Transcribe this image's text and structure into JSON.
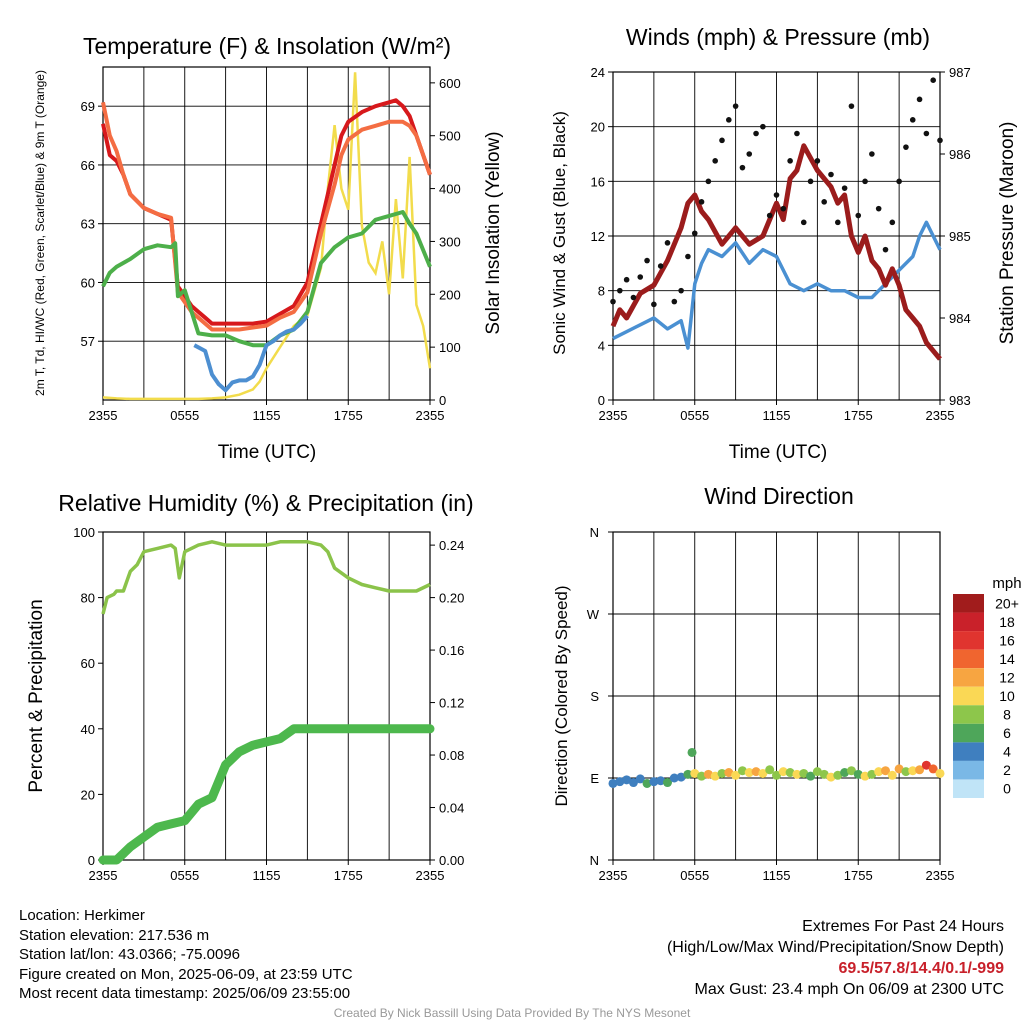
{
  "chart_data": [
    {
      "type": "line",
      "title": "Temperature (F) & Insolation (W/m²)",
      "xlabel": "Time (UTC)",
      "ylabel": "2m T, Td, HI/WC (Red, Green, Scarlet/Blue) & 9m T (Orange)",
      "y2label": "Solar Insolation (Yellow)",
      "x_tick_labels": [
        "2355",
        "0555",
        "1155",
        "1755",
        "2355"
      ],
      "ylim": [
        54,
        71
      ],
      "y_ticks": [
        "57",
        "60",
        "63",
        "66",
        "69"
      ],
      "y2lim": [
        0,
        630
      ],
      "y2_ticks": [
        "0",
        "100",
        "200",
        "300",
        "400",
        "500",
        "600"
      ],
      "series": [
        {
          "color": "#d7191c",
          "x": [
            0,
            0.5,
            1,
            1.5,
            2,
            3,
            4,
            5,
            5.5,
            6,
            6.5,
            7,
            7.5,
            8,
            9,
            10,
            11,
            12,
            13,
            14,
            15,
            16,
            17,
            17.5,
            18,
            19,
            20,
            21,
            21.5,
            22,
            22.5,
            23,
            23.5,
            24
          ],
          "values": [
            68.1,
            66.5,
            66.2,
            65.5,
            64.5,
            63.8,
            63.5,
            63.2,
            59.8,
            59.3,
            58.8,
            58.5,
            58.2,
            57.9,
            57.9,
            57.9,
            57.9,
            58.0,
            58.4,
            58.8,
            60.0,
            63.0,
            66.0,
            67.5,
            68.2,
            68.7,
            69.0,
            69.2,
            69.3,
            69.0,
            68.5,
            67.5,
            66.5,
            65.5
          ]
        },
        {
          "color": "#f46d43",
          "x": [
            0,
            0.5,
            1,
            1.5,
            2,
            3,
            4,
            5,
            5.5,
            6,
            6.5,
            7,
            7.5,
            8,
            9,
            10,
            11,
            12,
            13,
            14,
            15,
            16,
            17,
            17.5,
            18,
            19,
            20,
            21,
            21.5,
            22,
            22.5,
            23,
            23.5,
            24
          ],
          "values": [
            69.2,
            67.5,
            66.7,
            65.5,
            64.5,
            63.8,
            63.5,
            63.3,
            59.5,
            59.0,
            58.5,
            58.2,
            57.9,
            57.6,
            57.6,
            57.6,
            57.7,
            57.8,
            58.2,
            58.5,
            59.5,
            62.5,
            65.0,
            66.5,
            67.3,
            67.8,
            68.0,
            68.2,
            68.2,
            68.2,
            68.0,
            67.5,
            66.5,
            65.5
          ]
        },
        {
          "color": "#4daf4a",
          "x": [
            0,
            0.5,
            1,
            2,
            3,
            4,
            5,
            5.3,
            5.5,
            6,
            7,
            8,
            9,
            10,
            11,
            12,
            13,
            14,
            15,
            16,
            17,
            18,
            19,
            20,
            21,
            22,
            22.5,
            23,
            24
          ],
          "values": [
            59.8,
            60.5,
            60.8,
            61.2,
            61.7,
            61.9,
            61.8,
            62.0,
            59.3,
            59.6,
            57.4,
            57.3,
            57.3,
            57.0,
            56.8,
            56.8,
            57.3,
            57.6,
            58.5,
            61.0,
            61.8,
            62.3,
            62.5,
            63.2,
            63.4,
            63.6,
            63.0,
            62.5,
            60.8
          ]
        },
        {
          "color": "#4d8fd1",
          "x": [
            6.7,
            7.5,
            8,
            8.5,
            9,
            9.5,
            10,
            10.5,
            11,
            11.5,
            12,
            12.5,
            13,
            13.5,
            14,
            14.5,
            15
          ],
          "values": [
            56.8,
            56.5,
            55.3,
            54.8,
            54.5,
            54.9,
            55.0,
            55.0,
            55.2,
            55.8,
            56.8,
            57.0,
            57.3,
            57.5,
            57.6,
            57.9,
            58.3
          ]
        }
      ],
      "y2_series": {
        "color": "#f2dc4c",
        "x": [
          0,
          1,
          2,
          3,
          4,
          5,
          6,
          7,
          8,
          9,
          10,
          11,
          11.5,
          12,
          13,
          14,
          15,
          16,
          16.5,
          17,
          17.5,
          18,
          18.5,
          19,
          19.5,
          20,
          20.5,
          21,
          21.5,
          22,
          22.5,
          23,
          23.5,
          24
        ],
        "values": [
          5,
          3,
          2,
          2,
          2,
          2,
          2,
          2,
          3,
          5,
          10,
          20,
          35,
          60,
          100,
          140,
          160,
          250,
          400,
          520,
          400,
          360,
          620,
          330,
          260,
          240,
          300,
          200,
          380,
          230,
          460,
          180,
          140,
          60
        ]
      }
    },
    {
      "type": "scatter",
      "title": "Winds (mph) & Pressure (mb)",
      "xlabel": "Time (UTC)",
      "ylabel": "Sonic Wind & Gust (Blue, Black)",
      "y2label": "Station Pressure (Maroon)",
      "x_tick_labels": [
        "2355",
        "0555",
        "1155",
        "1755",
        "2355"
      ],
      "ylim": [
        0,
        24
      ],
      "y_ticks": [
        "0",
        "4",
        "8",
        "12",
        "16",
        "20",
        "24"
      ],
      "y2lim": [
        983,
        987
      ],
      "y2_ticks": [
        "983",
        "984",
        "985",
        "986",
        "987"
      ],
      "series": [
        {
          "color": "#4a90d2",
          "x": [
            0,
            1,
            2,
            3,
            4,
            5,
            5.5,
            6,
            6.5,
            7,
            8,
            9,
            10,
            11,
            12,
            13,
            14,
            15,
            16,
            17,
            18,
            19,
            20,
            21,
            22,
            22.5,
            23,
            23.5,
            24
          ],
          "values": [
            4.5,
            5.0,
            5.5,
            6.0,
            5.2,
            5.8,
            3.8,
            8.5,
            10.0,
            11.0,
            10.5,
            11.5,
            10.0,
            11.0,
            10.5,
            8.5,
            8.0,
            8.5,
            8.0,
            8.0,
            7.5,
            7.5,
            8.5,
            9.5,
            10.5,
            12.0,
            13.0,
            12.0,
            11.0
          ]
        },
        {
          "color": "#111111",
          "x": [
            0,
            0.5,
            1,
            1.5,
            2,
            2.5,
            3,
            3.5,
            4,
            4.5,
            5,
            5.5,
            6,
            6.5,
            7,
            7.5,
            8,
            8.5,
            9,
            9.5,
            10,
            10.5,
            11,
            11.5,
            12,
            12.5,
            13,
            13.5,
            14,
            14.5,
            15,
            15.5,
            16,
            16.5,
            17,
            17.5,
            18,
            18.5,
            19,
            19.5,
            20,
            20.5,
            21,
            21.5,
            22,
            22.5,
            23,
            23.5,
            24
          ],
          "values": [
            7.2,
            8.0,
            8.8,
            7.5,
            9.0,
            10.2,
            7.0,
            9.8,
            11.5,
            7.2,
            8.0,
            10.5,
            12.2,
            14.5,
            16.0,
            17.5,
            19.0,
            20.5,
            21.5,
            17.0,
            18.0,
            19.5,
            20.0,
            13.5,
            15.0,
            14.0,
            17.5,
            19.5,
            13.0,
            16.0,
            17.5,
            14.5,
            16.5,
            13.0,
            15.5,
            21.5,
            13.5,
            16.0,
            18.0,
            14.0,
            11.0,
            13.0,
            16.0,
            18.5,
            20.5,
            22.0,
            19.5,
            23.4,
            19.0
          ]
        }
      ],
      "y2_series": {
        "color": "#9b1c1c",
        "x": [
          0,
          0.5,
          1,
          2,
          3,
          4,
          5,
          5.5,
          6,
          6.5,
          7,
          8,
          9,
          10,
          11,
          11.5,
          12,
          12.5,
          13,
          13.5,
          14,
          15,
          16,
          16.5,
          17,
          17.5,
          18,
          18.5,
          19,
          19.5,
          20,
          20.5,
          21,
          21.5,
          22,
          22.5,
          23,
          23.5,
          24
        ],
        "values": [
          983.9,
          984.1,
          984.0,
          984.3,
          984.4,
          984.7,
          985.1,
          985.4,
          985.5,
          985.3,
          985.2,
          984.9,
          985.1,
          984.9,
          985.0,
          985.2,
          985.4,
          985.2,
          985.7,
          985.8,
          986.1,
          985.8,
          985.6,
          985.4,
          985.5,
          985.0,
          984.8,
          985.0,
          984.7,
          984.6,
          984.4,
          984.6,
          984.4,
          984.1,
          984.0,
          983.9,
          983.7,
          983.6,
          983.5
        ]
      }
    },
    {
      "type": "line",
      "title": "Relative Humidity (%) & Precipitation (in)",
      "ylabel": "Percent & Precipitation",
      "x_tick_labels": [
        "2355",
        "0555",
        "1155",
        "1755",
        "2355"
      ],
      "ylim": [
        0,
        100
      ],
      "y_ticks": [
        "0",
        "20",
        "40",
        "60",
        "80",
        "100"
      ],
      "y2lim": [
        0,
        0.25
      ],
      "y2_ticks": [
        "0.00",
        "0.04",
        "0.08",
        "0.12",
        "0.16",
        "0.20",
        "0.24"
      ],
      "series": [
        {
          "color": "#8bc34a",
          "x": [
            0,
            0.3,
            0.8,
            1,
            1.5,
            2,
            2.5,
            3,
            4,
            5,
            5.3,
            5.6,
            6,
            7,
            8,
            9,
            10,
            11,
            12,
            13,
            14,
            15,
            16,
            16.5,
            17,
            18,
            19,
            20,
            21,
            22,
            23,
            24
          ],
          "values": [
            75,
            80,
            81,
            82,
            82,
            88,
            90,
            94,
            95,
            96,
            95,
            86,
            94,
            96,
            97,
            96,
            96,
            96,
            96,
            97,
            97,
            97,
            96,
            94,
            89,
            86,
            84,
            83,
            82,
            82,
            82,
            84
          ]
        },
        {
          "color": "#4db84d",
          "x": [
            0,
            1,
            2,
            3,
            4,
            5,
            6,
            7,
            8,
            9,
            10,
            11,
            12,
            13,
            14,
            15,
            16,
            17,
            18,
            19,
            20,
            21,
            22,
            23,
            24
          ],
          "values": [
            0,
            0,
            4,
            7,
            10,
            11,
            12,
            17,
            19,
            29,
            33,
            35,
            36,
            37,
            40,
            40,
            40,
            40,
            40,
            40,
            40,
            40,
            40,
            40,
            40
          ]
        }
      ]
    },
    {
      "type": "scatter",
      "title": "Wind Direction",
      "ylabel": "Direction (Colored By Speed)",
      "x_tick_labels": [
        "2355",
        "0555",
        "1155",
        "1755",
        "2355"
      ],
      "y_ticks": [
        "N",
        "E",
        "S",
        "W",
        "N"
      ],
      "ylim": [
        0,
        360
      ],
      "legend": {
        "title": "mph",
        "labels": [
          "20+",
          "18",
          "16",
          "14",
          "12",
          "10",
          "8",
          "6",
          "4",
          "2",
          "0"
        ],
        "colors": [
          "#a11c1c",
          "#c9212a",
          "#e0342f",
          "#f0652f",
          "#f7a541",
          "#fad855",
          "#8dc64b",
          "#4ea65a",
          "#3f7fbf",
          "#7ab8e6",
          "#c0e4f7"
        ]
      },
      "series": [
        {
          "x": [
            0,
            0.5,
            1,
            1.5,
            2,
            2.5,
            3,
            3.5,
            4,
            4.5,
            5,
            5.5,
            5.8,
            6,
            6.5,
            7,
            7.5,
            8,
            8.5,
            9,
            9.5,
            10,
            10.5,
            11,
            11.5,
            12,
            12.5,
            13,
            13.5,
            14,
            14.5,
            15,
            15.5,
            16,
            16.5,
            17,
            17.5,
            18,
            18.5,
            19,
            19.5,
            20,
            20.5,
            21,
            21.5,
            22,
            22.5,
            23,
            23.5,
            24
          ],
          "values": [
            84,
            86,
            88,
            85,
            89,
            84,
            86,
            87,
            85,
            90,
            91,
            94,
            118,
            95,
            92,
            94,
            92,
            95,
            96,
            93,
            98,
            96,
            97,
            95,
            99,
            93,
            97,
            96,
            94,
            95,
            92,
            97,
            94,
            91,
            93,
            96,
            98,
            94,
            92,
            94,
            97,
            98,
            93,
            100,
            97,
            98,
            99,
            104,
            100,
            95
          ],
          "speeds": [
            4,
            4,
            5,
            5,
            4,
            6,
            4,
            5,
            6,
            4,
            4,
            6,
            7,
            10,
            8,
            12,
            11,
            9,
            12,
            10,
            9,
            11,
            12,
            10,
            8,
            9,
            11,
            8,
            10,
            9,
            7,
            8,
            9,
            10,
            8,
            6,
            8,
            7,
            10,
            9,
            11,
            12,
            10,
            12,
            9,
            11,
            13,
            16,
            14,
            10
          ]
        }
      ]
    }
  ],
  "info": {
    "location": "Location: Herkimer",
    "elevation": "Station elevation: 217.536 m",
    "latlon": "Station lat/lon: 43.0366; -75.0096",
    "created": "Figure created on Mon, 2025-06-09, at 23:59 UTC",
    "recent": "Most recent data timestamp: 2025/06/09 23:55:00"
  },
  "extremes": {
    "title": "Extremes For Past 24 Hours",
    "subtitle": "(High/Low/Max Wind/Precipitation/Snow Depth)",
    "values": "69.5/57.8/14.4/0.1/-999",
    "gust": "Max Gust: 23.4 mph On 06/09 at 2300 UTC"
  },
  "credit": "Created By Nick Bassill Using Data Provided By The NYS Mesonet"
}
